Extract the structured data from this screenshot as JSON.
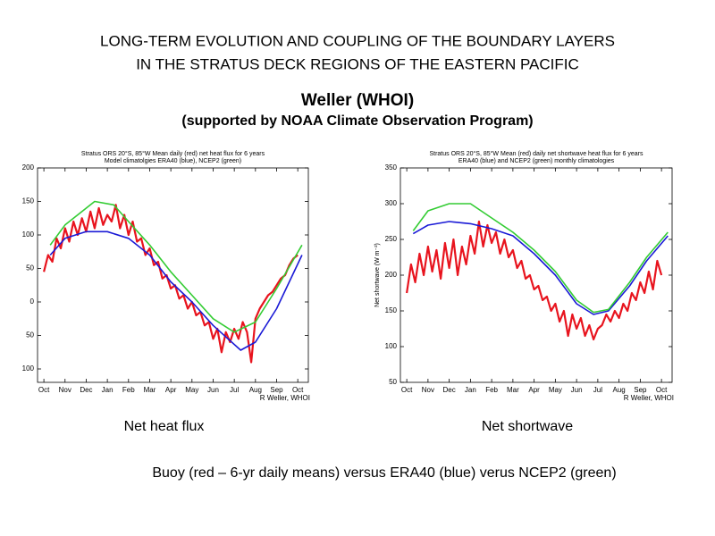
{
  "slide": {
    "title": [
      "LONG-TERM EVOLUTION AND COUPLING OF THE BOUNDARY LAYERS",
      "IN THE STRATUS DECK REGIONS OF THE EASTERN PACIFIC"
    ],
    "author": "Weller (WHOI)",
    "support": "(supported by NOAA Climate Observation Program)",
    "footer": "Buoy (red – 6-yr daily means) versus ERA40 (blue) verus NCEP2 (green)"
  },
  "chart_data": [
    {
      "type": "line",
      "title": "Stratus ORS 20°S, 85°W  Mean daily (red) net heat flux for 6 years",
      "subtitle": "Model climatolgies       ERA40 (blue), NCEP2 (green)",
      "credit": "R Weller, WHOI",
      "caption": "Net heat flux",
      "xlim": [
        -0.3,
        12.5
      ],
      "ylim": [
        -120,
        200
      ],
      "xticks": [
        {
          "value": 0,
          "label": "Oct"
        },
        {
          "value": 1,
          "label": "Nov"
        },
        {
          "value": 2,
          "label": "Dec"
        },
        {
          "value": 3,
          "label": "Jan"
        },
        {
          "value": 4,
          "label": "Feb"
        },
        {
          "value": 5,
          "label": "Mar"
        },
        {
          "value": 6,
          "label": "Apr"
        },
        {
          "value": 7,
          "label": "May"
        },
        {
          "value": 8,
          "label": "Jun"
        },
        {
          "value": 9,
          "label": "Jul"
        },
        {
          "value": 10,
          "label": "Aug"
        },
        {
          "value": 11,
          "label": "Sep"
        },
        {
          "value": 12,
          "label": "Oct"
        }
      ],
      "yticks": [
        200,
        150,
        100,
        50,
        0,
        {
          "value": -50,
          "label": "50"
        },
        {
          "value": -100,
          "label": "100"
        }
      ],
      "series": [
        {
          "color": "#e8141e",
          "x": [
            0,
            0.2,
            0.4,
            0.6,
            0.8,
            1,
            1.2,
            1.4,
            1.6,
            1.8,
            2,
            2.2,
            2.4,
            2.6,
            2.8,
            3,
            3.2,
            3.4,
            3.6,
            3.8,
            4,
            4.2,
            4.4,
            4.6,
            4.8,
            5,
            5.2,
            5.4,
            5.6,
            5.8,
            6,
            6.2,
            6.4,
            6.6,
            6.8,
            7,
            7.2,
            7.4,
            7.6,
            7.8,
            8,
            8.2,
            8.4,
            8.6,
            8.8,
            9,
            9.2,
            9.4,
            9.6,
            9.8,
            10,
            10.2,
            10.4,
            10.6,
            10.8,
            11,
            11.2,
            11.4,
            11.6,
            11.8,
            12
          ],
          "values": [
            45,
            70,
            60,
            95,
            80,
            110,
            90,
            120,
            100,
            125,
            105,
            135,
            110,
            140,
            115,
            130,
            120,
            145,
            110,
            130,
            100,
            120,
            90,
            95,
            70,
            80,
            55,
            60,
            35,
            40,
            20,
            25,
            5,
            10,
            -10,
            0,
            -20,
            -15,
            -35,
            -30,
            -55,
            -40,
            -75,
            -45,
            -60,
            -40,
            -55,
            -30,
            -45,
            -90,
            -25,
            -10,
            0,
            10,
            15,
            25,
            35,
            40,
            55,
            65,
            70
          ]
        },
        {
          "color": "#1a1ad6",
          "x": [
            0.3,
            1,
            2,
            3,
            4,
            5,
            6,
            7,
            8,
            9.3,
            10,
            11,
            12.2
          ],
          "values": [
            70,
            95,
            105,
            105,
            95,
            70,
            30,
            0,
            -35,
            -72,
            -60,
            -10,
            70
          ]
        },
        {
          "color": "#33cc33",
          "x": [
            0.3,
            1,
            2.4,
            3.3,
            4,
            5,
            6,
            7,
            8,
            9,
            10,
            11,
            12.2
          ],
          "values": [
            85,
            115,
            150,
            145,
            120,
            85,
            45,
            10,
            -25,
            -45,
            -30,
            20,
            85
          ]
        }
      ]
    },
    {
      "type": "line",
      "title": "Stratus ORS 20°S, 85°W  Mean (red) daily net shortwave heat flux for 6 years",
      "subtitle": "ERA40 (blue) and NCEP2 (green) monthly climatologies",
      "ylabel": "Net shortwave (W m⁻²)",
      "credit": "R Weller, WHOI",
      "caption": "Net shortwave",
      "xlim": [
        -0.3,
        12.5
      ],
      "ylim": [
        50,
        350
      ],
      "xticks": [
        {
          "value": 0,
          "label": "Oct"
        },
        {
          "value": 1,
          "label": "Nov"
        },
        {
          "value": 2,
          "label": "Dec"
        },
        {
          "value": 3,
          "label": "Jan"
        },
        {
          "value": 4,
          "label": "Feb"
        },
        {
          "value": 5,
          "label": "Mar"
        },
        {
          "value": 6,
          "label": "Apr"
        },
        {
          "value": 7,
          "label": "May"
        },
        {
          "value": 8,
          "label": "Jun"
        },
        {
          "value": 9,
          "label": "Jul"
        },
        {
          "value": 10,
          "label": "Aug"
        },
        {
          "value": 11,
          "label": "Sep"
        },
        {
          "value": 12,
          "label": "Oct"
        }
      ],
      "yticks": [
        350,
        300,
        250,
        200,
        150,
        100,
        50
      ],
      "series": [
        {
          "color": "#e8141e",
          "x": [
            0,
            0.2,
            0.4,
            0.6,
            0.8,
            1,
            1.2,
            1.4,
            1.6,
            1.8,
            2,
            2.2,
            2.4,
            2.6,
            2.8,
            3,
            3.2,
            3.4,
            3.6,
            3.8,
            4,
            4.2,
            4.4,
            4.6,
            4.8,
            5,
            5.2,
            5.4,
            5.6,
            5.8,
            6,
            6.2,
            6.4,
            6.6,
            6.8,
            7,
            7.2,
            7.4,
            7.6,
            7.8,
            8,
            8.2,
            8.4,
            8.6,
            8.8,
            9,
            9.2,
            9.4,
            9.6,
            9.8,
            10,
            10.2,
            10.4,
            10.6,
            10.8,
            11,
            11.2,
            11.4,
            11.6,
            11.8,
            12
          ],
          "values": [
            175,
            215,
            190,
            230,
            200,
            240,
            205,
            235,
            195,
            245,
            210,
            250,
            200,
            240,
            215,
            255,
            230,
            275,
            240,
            270,
            245,
            260,
            230,
            250,
            225,
            235,
            210,
            220,
            195,
            200,
            180,
            185,
            165,
            170,
            150,
            160,
            135,
            150,
            115,
            145,
            125,
            140,
            115,
            130,
            110,
            125,
            130,
            145,
            135,
            150,
            140,
            160,
            150,
            175,
            165,
            190,
            175,
            205,
            180,
            220,
            200
          ]
        },
        {
          "color": "#1a1ad6",
          "x": [
            0.3,
            1,
            2,
            3,
            4,
            5,
            6,
            7,
            8,
            8.8,
            9.5,
            10.5,
            11.3,
            12.3
          ],
          "values": [
            258,
            270,
            275,
            272,
            265,
            255,
            230,
            200,
            160,
            145,
            150,
            185,
            220,
            255
          ]
        },
        {
          "color": "#33cc33",
          "x": [
            0.3,
            1,
            2,
            3,
            4,
            5,
            6,
            7,
            8,
            8.8,
            9.5,
            10.5,
            11.3,
            12.3
          ],
          "values": [
            262,
            290,
            300,
            300,
            280,
            260,
            235,
            205,
            165,
            148,
            152,
            190,
            225,
            260
          ]
        }
      ]
    }
  ]
}
